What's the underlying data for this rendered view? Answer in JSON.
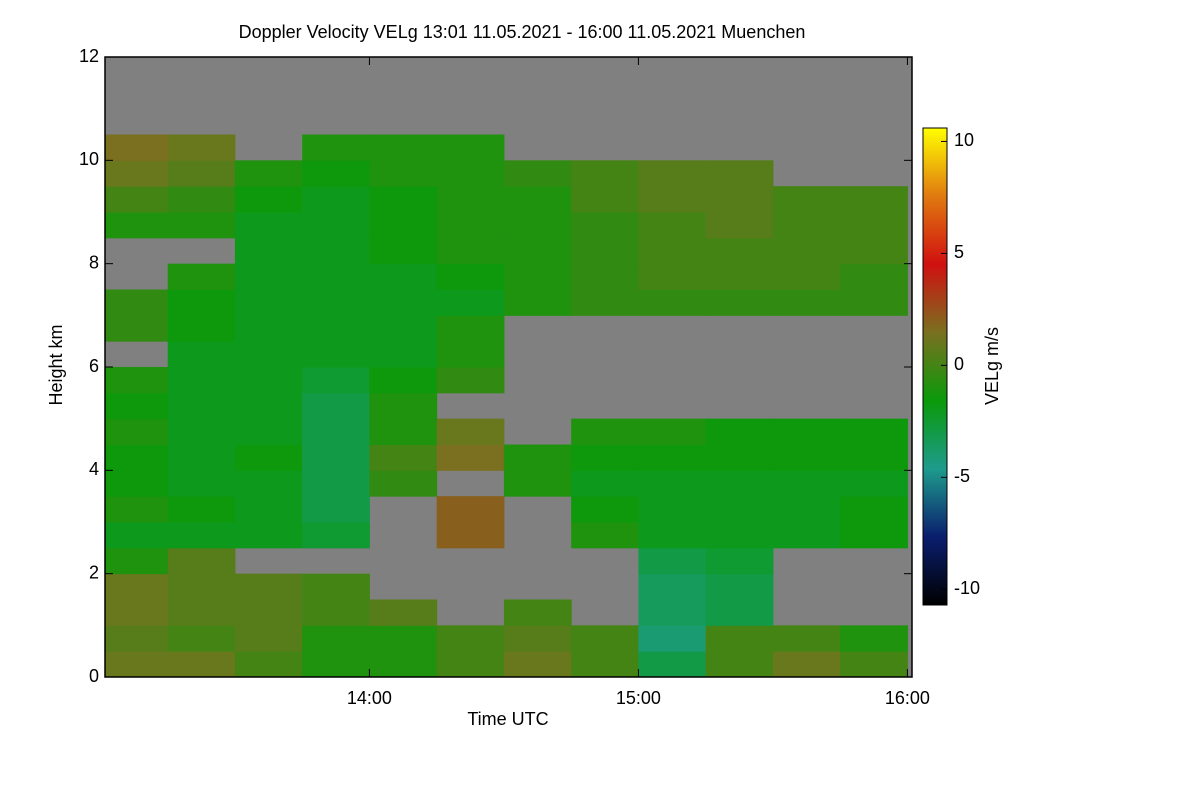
{
  "chart_data": {
    "type": "heatmap",
    "title": "Doppler Velocity VELg   13:01 11.05.2021 - 16:00 11.05.2021 Muenchen",
    "x_label": "Time UTC",
    "y_label": "Height km",
    "colorbar_label": "VELg m/s",
    "xlim": [
      13.017,
      16.017
    ],
    "xticks": [
      {
        "value": 14,
        "label": "14:00"
      },
      {
        "value": 15,
        "label": "15:00"
      },
      {
        "value": 16,
        "label": "16:00"
      }
    ],
    "ylim": [
      0,
      12
    ],
    "yticks": [
      0,
      2,
      4,
      6,
      8,
      10,
      12
    ],
    "clim": [
      -10.7,
      10.6
    ],
    "cticks": [
      -10,
      -5,
      0,
      5,
      10
    ],
    "colors": [
      "#000000",
      "#0a1e6e",
      "#1e9b8c",
      "#0a9a0a",
      "#7a7020",
      "#d01010",
      "#e07a10",
      "#ffff00"
    ],
    "missing_color": "#808080",
    "x": [
      13.125,
      13.375,
      13.625,
      13.875,
      14.125,
      14.375,
      14.625,
      14.875,
      15.125,
      15.375,
      15.625,
      15.875
    ],
    "y": [
      0.25,
      0.75,
      1.25,
      1.75,
      2.25,
      2.75,
      3.25,
      3.75,
      4.25,
      4.75,
      5.25,
      5.75,
      6.25,
      6.75,
      7.25,
      7.75,
      8.25,
      8.75,
      9.25,
      9.75,
      10.25,
      10.75,
      11.25,
      11.75
    ],
    "z": [
      [
        1,
        1,
        0,
        -1,
        -1,
        0,
        1,
        0,
        -3,
        0,
        1,
        0
      ],
      [
        0.5,
        0,
        0.5,
        -1,
        -1,
        0,
        0.5,
        0,
        -4,
        0,
        0,
        -1
      ],
      [
        1,
        0.5,
        0.5,
        0,
        0.5,
        null,
        0,
        null,
        -3.5,
        -3,
        null,
        null
      ],
      [
        1,
        0.5,
        0.5,
        0,
        null,
        null,
        null,
        null,
        -3.5,
        -3,
        null,
        null
      ],
      [
        -1,
        0.5,
        null,
        null,
        null,
        null,
        null,
        null,
        -3,
        -2.5,
        null,
        null
      ],
      [
        -2,
        -2,
        -2,
        -2.5,
        null,
        2,
        null,
        -1,
        -2,
        -2,
        -2,
        -1.5
      ],
      [
        -1,
        -1.5,
        -2,
        -3,
        null,
        2,
        null,
        -1.5,
        -2,
        -2,
        -2,
        -1.5
      ],
      [
        -1.5,
        -2,
        -2,
        -3,
        -0.5,
        null,
        -1,
        -2,
        -2,
        -2,
        -2,
        -2
      ],
      [
        -1.5,
        -2,
        -1.5,
        -3,
        0,
        1.5,
        -1,
        -1.5,
        -1.5,
        -1.5,
        -1.5,
        -1.5
      ],
      [
        -1,
        -2,
        -2,
        -3,
        -1,
        1,
        null,
        -1,
        -1,
        -1.5,
        -1.5,
        -1.5
      ],
      [
        -1.5,
        -2,
        -2,
        -3,
        -1,
        null,
        null,
        null,
        null,
        null,
        null,
        null
      ],
      [
        -1,
        -2,
        -2,
        -2.5,
        -1.5,
        -0.5,
        null,
        null,
        null,
        null,
        null,
        null
      ],
      [
        null,
        -2,
        -2,
        -2,
        -2,
        -1,
        null,
        null,
        null,
        null,
        null,
        null
      ],
      [
        -0.5,
        -1.5,
        -2,
        -2,
        -2,
        -1,
        null,
        null,
        null,
        null,
        null,
        null
      ],
      [
        -0.5,
        -1.5,
        -2,
        -2,
        -2,
        -2,
        -1,
        -0.5,
        -0.5,
        -0.5,
        -0.5,
        -0.5
      ],
      [
        null,
        -1,
        -2,
        -2,
        -2,
        -1.5,
        -1,
        -0.5,
        0,
        0,
        0,
        -0.5
      ],
      [
        null,
        null,
        -2,
        -2,
        -1.5,
        -1,
        -1,
        -0.5,
        0,
        0,
        0,
        0
      ],
      [
        -1,
        -1,
        -2,
        -2,
        -1.5,
        -1,
        -1,
        -0.5,
        0,
        0.5,
        0,
        0
      ],
      [
        0,
        -0.5,
        -1.5,
        -2,
        -1.5,
        -1,
        -1,
        0,
        0.5,
        0.5,
        0,
        0
      ],
      [
        1,
        0.5,
        -1,
        -1.5,
        -1,
        -1,
        -0.5,
        0,
        0.5,
        0.5,
        null,
        null
      ],
      [
        1.5,
        1,
        null,
        -1,
        -1,
        -1,
        null,
        null,
        null,
        null,
        null,
        null
      ],
      [
        null,
        null,
        null,
        null,
        null,
        null,
        null,
        null,
        null,
        null,
        null,
        null
      ],
      [
        null,
        null,
        null,
        null,
        null,
        null,
        null,
        null,
        null,
        null,
        null,
        null
      ],
      [
        null,
        null,
        null,
        null,
        null,
        null,
        null,
        null,
        null,
        null,
        null,
        null
      ]
    ]
  }
}
